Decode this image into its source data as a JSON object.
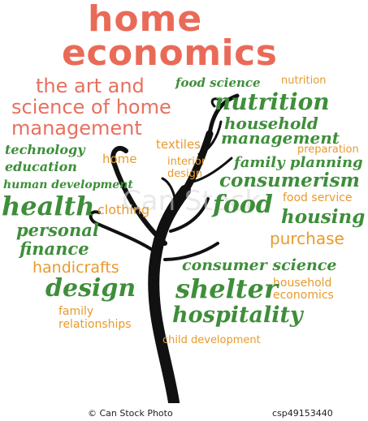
{
  "title": {
    "line1": "home",
    "line2": "economics"
  },
  "words": {
    "art_line1": "the art and",
    "art_line2": "science of home",
    "art_line3": "management",
    "food_science": "food science",
    "nutrition_small": "nutrition",
    "nutrition_big": "nutrition",
    "household": "household",
    "management": "management",
    "preparation": "preparation",
    "technology": "technology",
    "education": "education",
    "human_development": "human development",
    "home": "home",
    "textiles": "textiles",
    "interior": "interior",
    "design_small": "design",
    "family_planning": "family planning",
    "consumerism": "consumerism",
    "food_service": "food service",
    "health": "health",
    "clothing": "clothing",
    "food": "food",
    "housing": "housing",
    "personal": "personal",
    "finance": "finance",
    "purchase": "purchase",
    "handicrafts": "handicrafts",
    "consumer_science": "consumer science",
    "household_econ1": "household",
    "household_econ2": "economics",
    "design_big": "design",
    "shelter": "shelter",
    "family": "family",
    "relationships": "relationships",
    "hospitality": "hospitality",
    "child_development": "child development"
  },
  "watermark": "Can Stock",
  "footer": {
    "credit": "© Can Stock Photo",
    "id": "csp49153440"
  },
  "colors": {
    "red": "#e8705f",
    "green": "#3e8e3a",
    "orange": "#e99a2c",
    "tree": "#111111"
  }
}
